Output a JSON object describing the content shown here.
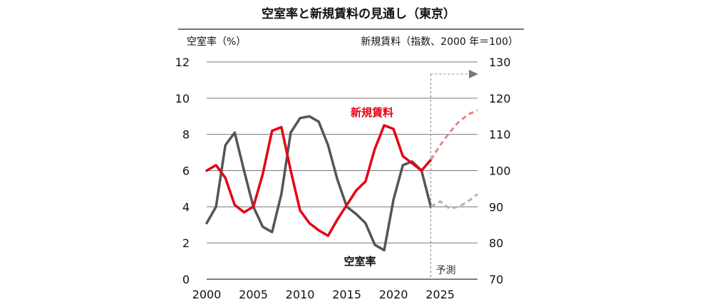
{
  "chart_data": {
    "type": "line",
    "title": "空室率と新規賃料の見通し（東京）",
    "ylabel_left": "空室率（%）",
    "ylabel_right": "新規賃料（指数、2000 年＝100）",
    "x_ticks": [
      2000,
      2005,
      2010,
      2015,
      2020,
      2025
    ],
    "xlim": [
      2000,
      2029
    ],
    "ylim_left": [
      0,
      12
    ],
    "ylim_right": [
      70,
      130
    ],
    "yticks_left": [
      0,
      2,
      4,
      6,
      8,
      10,
      12
    ],
    "yticks_right": [
      70,
      80,
      90,
      100,
      110,
      120,
      130
    ],
    "forecast_start": 2024,
    "forecast_label": "予測",
    "series": [
      {
        "name": "空室率",
        "axis": "left",
        "color": "#555555",
        "forecast_color": "#b3b3b3",
        "x": [
          2000,
          2001,
          2002,
          2003,
          2004,
          2005,
          2006,
          2007,
          2008,
          2009,
          2010,
          2011,
          2012,
          2013,
          2014,
          2015,
          2016,
          2017,
          2018,
          2019,
          2020,
          2021,
          2022,
          2023,
          2024
        ],
        "values": [
          3.1,
          4.0,
          7.4,
          8.1,
          6.0,
          4.0,
          2.9,
          2.6,
          4.7,
          8.1,
          8.9,
          9.0,
          8.7,
          7.4,
          5.5,
          4.0,
          3.6,
          3.1,
          1.9,
          1.6,
          4.4,
          6.3,
          6.5,
          6.0,
          4.0
        ],
        "forecast_x": [
          2024,
          2025,
          2026,
          2027,
          2028,
          2029
        ],
        "forecast_values": [
          4.0,
          4.3,
          3.9,
          4.0,
          4.3,
          4.7
        ]
      },
      {
        "name": "新規賃料",
        "axis": "right",
        "color": "#e60012",
        "forecast_color": "#f08080",
        "x": [
          2000,
          2001,
          2002,
          2003,
          2004,
          2005,
          2006,
          2007,
          2008,
          2009,
          2010,
          2011,
          2012,
          2013,
          2014,
          2015,
          2016,
          2017,
          2018,
          2019,
          2020,
          2021,
          2022,
          2023,
          2024
        ],
        "values": [
          100,
          101.5,
          98,
          90.5,
          88.5,
          90,
          99,
          111,
          112,
          100,
          89,
          85.5,
          83.5,
          82,
          86.5,
          90.5,
          94.5,
          97,
          106,
          112.5,
          111.5,
          104,
          102,
          100,
          103
        ],
        "forecast_x": [
          2024,
          2025,
          2026,
          2027,
          2028,
          2029
        ],
        "forecast_values": [
          103,
          107,
          110.5,
          113.5,
          115.5,
          116.7
        ]
      }
    ]
  }
}
